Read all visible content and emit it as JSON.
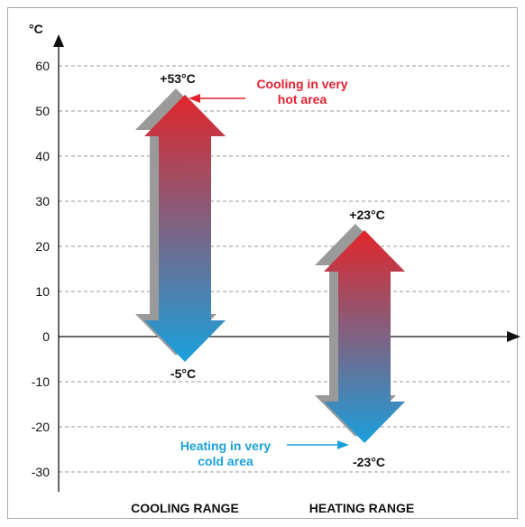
{
  "unit_label": "°C",
  "y_ticks": [
    "60",
    "50",
    "40",
    "30",
    "20",
    "10",
    "0",
    "-10",
    "-20",
    "-30"
  ],
  "colors": {
    "hot": "#e0262b",
    "cold": "#1aa0dc",
    "shadow": "#9a9a9a",
    "cooling_note": "#e4202f",
    "heating_note": "#1aa0dc",
    "gridline": "#9a9a9a",
    "frame": "#aaaaaa"
  },
  "chart_data": {
    "type": "range",
    "ylim": [
      -30,
      60
    ],
    "ylabel": "°C",
    "grid": true,
    "categories": [
      "COOLING RANGE",
      "HEATING RANGE"
    ],
    "ranges": [
      {
        "category": "COOLING RANGE",
        "max": 53,
        "min": -5,
        "max_label": "+53°C",
        "min_label": "-5°C"
      },
      {
        "category": "HEATING RANGE",
        "max": 23,
        "min": -23,
        "max_label": "+23°C",
        "min_label": "-23°C"
      }
    ],
    "annotations": [
      {
        "lines": [
          "Cooling in very",
          "hot area"
        ],
        "target": "COOLING RANGE max"
      },
      {
        "lines": [
          "Heating in very",
          "cold area"
        ],
        "target": "HEATING RANGE min"
      }
    ]
  }
}
